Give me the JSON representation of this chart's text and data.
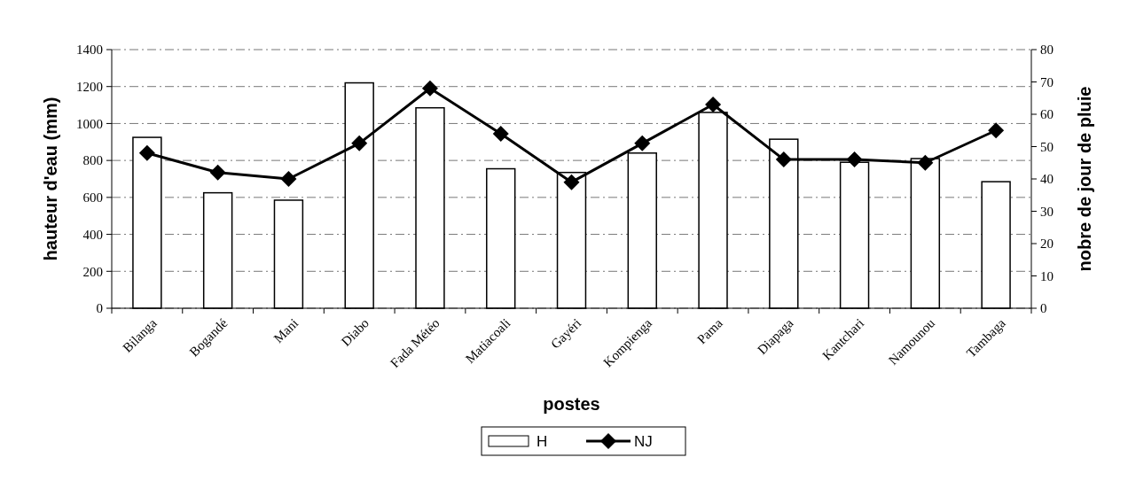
{
  "chart_data": {
    "type": "bar",
    "xlabel": "postes",
    "ylabel": "hauteur d'eau (mm)",
    "y2label": "nobre de jour de pluie",
    "categories": [
      "Bilanga",
      "Bogandé",
      "Mani",
      "Diabo",
      "Fada Météo",
      "Matiacoali",
      "Gayéri",
      "Kompienga",
      "Pama",
      "Diapaga",
      "Kantchari",
      "Namounou",
      "Tambaga"
    ],
    "series": [
      {
        "name": "H",
        "color": "#ffffff",
        "values": [
          925,
          625,
          585,
          1220,
          1085,
          755,
          735,
          840,
          1060,
          915,
          790,
          810,
          685
        ]
      },
      {
        "name": "NJ",
        "type": "line",
        "axis": "y2",
        "color": "#000000",
        "marker": "diamond",
        "values": [
          48,
          42,
          40,
          51,
          68,
          54,
          39,
          51,
          63,
          46,
          46,
          45,
          55
        ]
      }
    ],
    "ylim": [
      0,
      1400
    ],
    "yticks": [
      0,
      200,
      400,
      600,
      800,
      1000,
      1200,
      1400
    ],
    "y2lim": [
      0,
      80
    ],
    "y2ticks": [
      0,
      10,
      20,
      30,
      40,
      50,
      60,
      70,
      80
    ],
    "grid": "y",
    "legend": "bottom"
  }
}
